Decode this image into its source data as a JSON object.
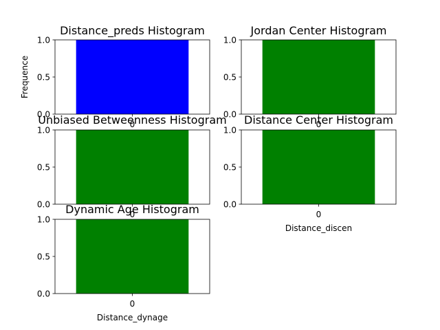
{
  "chart_data": [
    {
      "type": "bar",
      "title": "Distance_preds Histogram",
      "xlabel": "",
      "ylabel": "Frequence",
      "categories": [
        "0"
      ],
      "values": [
        1.0
      ],
      "ylim": [
        0,
        1.0
      ],
      "yticks": [
        "0.0",
        "0.5",
        "1.0"
      ],
      "color": "#0000ff"
    },
    {
      "type": "bar",
      "title": "Jordan Center Histogram",
      "xlabel": "",
      "ylabel": "",
      "categories": [
        "0"
      ],
      "values": [
        1.0
      ],
      "ylim": [
        0,
        1.0
      ],
      "yticks": [
        "0.0",
        "0.5",
        "1.0"
      ],
      "color": "#008000"
    },
    {
      "type": "bar",
      "title": "Unbiased Betweenness Histogram",
      "xlabel": "",
      "ylabel": "",
      "categories": [
        "0"
      ],
      "values": [
        1.0
      ],
      "ylim": [
        0,
        1.0
      ],
      "yticks": [
        "0.0",
        "0.5",
        "1.0"
      ],
      "color": "#008000"
    },
    {
      "type": "bar",
      "title": "Distance Center Histogram",
      "xlabel": "Distance_discen",
      "ylabel": "",
      "categories": [
        "0"
      ],
      "values": [
        1.0
      ],
      "ylim": [
        0,
        1.0
      ],
      "yticks": [
        "0.0",
        "0.5",
        "1.0"
      ],
      "color": "#008000"
    },
    {
      "type": "bar",
      "title": "Dynamic Age Histogram",
      "xlabel": "Distance_dynage",
      "ylabel": "",
      "categories": [
        "0"
      ],
      "values": [
        1.0
      ],
      "ylim": [
        0,
        1.0
      ],
      "yticks": [
        "0.0",
        "0.5",
        "1.0"
      ],
      "color": "#008000"
    }
  ]
}
